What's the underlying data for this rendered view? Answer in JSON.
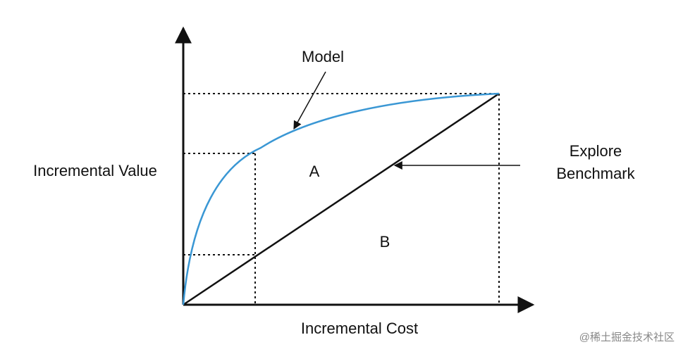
{
  "labels": {
    "y_axis": "Incremental Value",
    "x_axis": "Incremental Cost",
    "model": "Model",
    "region_a": "A",
    "region_b": "B",
    "benchmark": [
      "Explore",
      "Benchmark"
    ]
  },
  "watermark": "@稀土掘金技术社区"
}
